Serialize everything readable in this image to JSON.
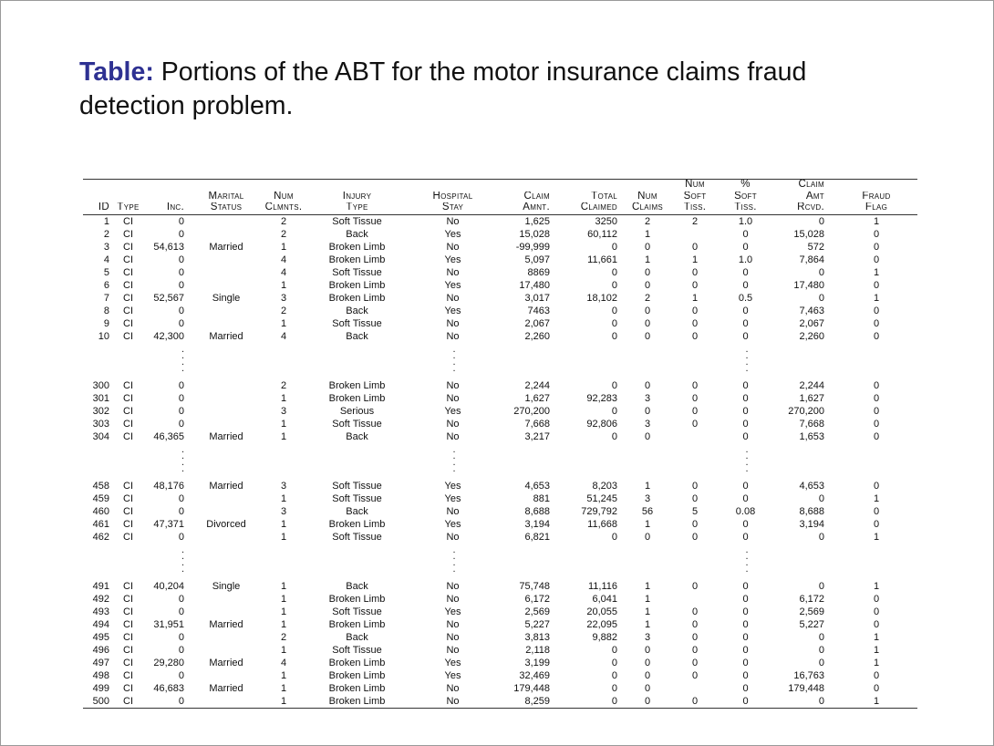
{
  "title": {
    "label": "Table:",
    "text": "Portions of the ABT for the motor insurance claims fraud detection problem."
  },
  "header": {
    "row1": [
      "",
      "",
      "",
      "",
      "",
      "",
      "",
      "",
      "",
      "",
      "Num",
      "%",
      "Claim",
      ""
    ],
    "row2": [
      "",
      "",
      "",
      "Marital",
      "Num",
      "Injury",
      "Hospital",
      "Claim",
      "Total",
      "Num",
      "Soft",
      "Soft",
      "Amt",
      "Fraud"
    ],
    "row3": [
      "ID",
      "Type",
      "Inc.",
      "Status",
      "Clmnts.",
      "Type",
      "Stay",
      "Amnt.",
      "Claimed",
      "Claims",
      "Tiss.",
      "Tiss.",
      "Rcvd.",
      "Flag"
    ]
  },
  "groups": [
    {
      "rows": [
        [
          "1",
          "CI",
          "0",
          "",
          "2",
          "Soft Tissue",
          "No",
          "1,625",
          "3250",
          "2",
          "2",
          "1.0",
          "0",
          "1"
        ],
        [
          "2",
          "CI",
          "0",
          "",
          "2",
          "Back",
          "Yes",
          "15,028",
          "60,112",
          "1",
          "",
          "0",
          "15,028",
          "0"
        ],
        [
          "3",
          "CI",
          "54,613",
          "Married",
          "1",
          "Broken Limb",
          "No",
          "-99,999",
          "0",
          "0",
          "0",
          "0",
          "572",
          "0"
        ],
        [
          "4",
          "CI",
          "0",
          "",
          "4",
          "Broken Limb",
          "Yes",
          "5,097",
          "11,661",
          "1",
          "1",
          "1.0",
          "7,864",
          "0"
        ],
        [
          "5",
          "CI",
          "0",
          "",
          "4",
          "Soft Tissue",
          "No",
          "8869",
          "0",
          "0",
          "0",
          "0",
          "0",
          "1"
        ],
        [
          "6",
          "CI",
          "0",
          "",
          "1",
          "Broken Limb",
          "Yes",
          "17,480",
          "0",
          "0",
          "0",
          "0",
          "17,480",
          "0"
        ],
        [
          "7",
          "CI",
          "52,567",
          "Single",
          "3",
          "Broken Limb",
          "No",
          "3,017",
          "18,102",
          "2",
          "1",
          "0.5",
          "0",
          "1"
        ],
        [
          "8",
          "CI",
          "0",
          "",
          "2",
          "Back",
          "Yes",
          "7463",
          "0",
          "0",
          "0",
          "0",
          "7,463",
          "0"
        ],
        [
          "9",
          "CI",
          "0",
          "",
          "1",
          "Soft Tissue",
          "No",
          "2,067",
          "0",
          "0",
          "0",
          "0",
          "2,067",
          "0"
        ],
        [
          "10",
          "CI",
          "42,300",
          "Married",
          "4",
          "Back",
          "No",
          "2,260",
          "0",
          "0",
          "0",
          "0",
          "2,260",
          "0"
        ]
      ]
    },
    {
      "rows": [
        [
          "300",
          "CI",
          "0",
          "",
          "2",
          "Broken Limb",
          "No",
          "2,244",
          "0",
          "0",
          "0",
          "0",
          "2,244",
          "0"
        ],
        [
          "301",
          "CI",
          "0",
          "",
          "1",
          "Broken Limb",
          "No",
          "1,627",
          "92,283",
          "3",
          "0",
          "0",
          "1,627",
          "0"
        ],
        [
          "302",
          "CI",
          "0",
          "",
          "3",
          "Serious",
          "Yes",
          "270,200",
          "0",
          "0",
          "0",
          "0",
          "270,200",
          "0"
        ],
        [
          "303",
          "CI",
          "0",
          "",
          "1",
          "Soft Tissue",
          "No",
          "7,668",
          "92,806",
          "3",
          "0",
          "0",
          "7,668",
          "0"
        ],
        [
          "304",
          "CI",
          "46,365",
          "Married",
          "1",
          "Back",
          "No",
          "3,217",
          "0",
          "0",
          "",
          "0",
          "1,653",
          "0"
        ]
      ]
    },
    {
      "rows": [
        [
          "458",
          "CI",
          "48,176",
          "Married",
          "3",
          "Soft Tissue",
          "Yes",
          "4,653",
          "8,203",
          "1",
          "0",
          "0",
          "4,653",
          "0"
        ],
        [
          "459",
          "CI",
          "0",
          "",
          "1",
          "Soft Tissue",
          "Yes",
          "881",
          "51,245",
          "3",
          "0",
          "0",
          "0",
          "1"
        ],
        [
          "460",
          "CI",
          "0",
          "",
          "3",
          "Back",
          "No",
          "8,688",
          "729,792",
          "56",
          "5",
          "0.08",
          "8,688",
          "0"
        ],
        [
          "461",
          "CI",
          "47,371",
          "Divorced",
          "1",
          "Broken Limb",
          "Yes",
          "3,194",
          "11,668",
          "1",
          "0",
          "0",
          "3,194",
          "0"
        ],
        [
          "462",
          "CI",
          "0",
          "",
          "1",
          "Soft Tissue",
          "No",
          "6,821",
          "0",
          "0",
          "0",
          "0",
          "0",
          "1"
        ]
      ]
    },
    {
      "rows": [
        [
          "491",
          "CI",
          "40,204",
          "Single",
          "1",
          "Back",
          "No",
          "75,748",
          "11,116",
          "1",
          "0",
          "0",
          "0",
          "1"
        ],
        [
          "492",
          "CI",
          "0",
          "",
          "1",
          "Broken Limb",
          "No",
          "6,172",
          "6,041",
          "1",
          "",
          "0",
          "6,172",
          "0"
        ],
        [
          "493",
          "CI",
          "0",
          "",
          "1",
          "Soft Tissue",
          "Yes",
          "2,569",
          "20,055",
          "1",
          "0",
          "0",
          "2,569",
          "0"
        ],
        [
          "494",
          "CI",
          "31,951",
          "Married",
          "1",
          "Broken Limb",
          "No",
          "5,227",
          "22,095",
          "1",
          "0",
          "0",
          "5,227",
          "0"
        ],
        [
          "495",
          "CI",
          "0",
          "",
          "2",
          "Back",
          "No",
          "3,813",
          "9,882",
          "3",
          "0",
          "0",
          "0",
          "1"
        ],
        [
          "496",
          "CI",
          "0",
          "",
          "1",
          "Soft Tissue",
          "No",
          "2,118",
          "0",
          "0",
          "0",
          "0",
          "0",
          "1"
        ],
        [
          "497",
          "CI",
          "29,280",
          "Married",
          "4",
          "Broken Limb",
          "Yes",
          "3,199",
          "0",
          "0",
          "0",
          "0",
          "0",
          "1"
        ],
        [
          "498",
          "CI",
          "0",
          "",
          "1",
          "Broken Limb",
          "Yes",
          "32,469",
          "0",
          "0",
          "0",
          "0",
          "16,763",
          "0"
        ],
        [
          "499",
          "CI",
          "46,683",
          "Married",
          "1",
          "Broken Limb",
          "No",
          "179,448",
          "0",
          "0",
          "",
          "0",
          "179,448",
          "0"
        ],
        [
          "500",
          "CI",
          "0",
          "",
          "1",
          "Broken Limb",
          "No",
          "8,259",
          "0",
          "0",
          "0",
          "0",
          "0",
          "1"
        ]
      ]
    }
  ]
}
